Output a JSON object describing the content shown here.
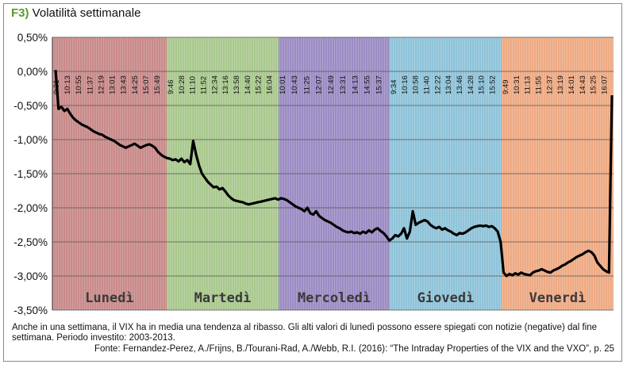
{
  "title_tag": "F3)",
  "title": "Volatilità settimanale",
  "note": "Anche in una settimana, il VIX ha in media una tendenza al ribasso. Gli alti valori di lunedì possono essere spiegati con notizie (negative) dal fine settimana. Periodo investito: 2003-2013.",
  "source": "Fonte: Fernandez-Perez, A./Frijns, B./Tourani-Rad, A./Webb, R.I. (2016): “The Intraday Properties of the VIX and the VXO”, p. 25",
  "chart_data": {
    "type": "line",
    "ylim": [
      -3.5,
      0.5
    ],
    "yticks": [
      "0,50%",
      "0,00%",
      "-0,50%",
      "-1,00%",
      "-1,50%",
      "-2,00%",
      "-2,50%",
      "-3,00%",
      "-3,50%"
    ],
    "grid": true,
    "days": [
      {
        "name": "Lunedì",
        "color": "#c98a8a",
        "ticks": [
          "9:31",
          "10:13",
          "10:55",
          "11:37",
          "12:19",
          "13:01",
          "13:43",
          "14:25",
          "15:07",
          "15:49"
        ]
      },
      {
        "name": "Martedì",
        "color": "#a9c98e",
        "ticks": [
          "9:46",
          "10:28",
          "11:10",
          "11:52",
          "12:34",
          "13:16",
          "13:58",
          "14:40",
          "15:22",
          "16:04"
        ]
      },
      {
        "name": "Mercoledì",
        "color": "#9b8cc4",
        "ticks": [
          "10:01",
          "10:43",
          "11:25",
          "12:07",
          "12:49",
          "13:31",
          "14:13",
          "14:55",
          "15:37"
        ]
      },
      {
        "name": "Giovedì",
        "color": "#8fc3d9",
        "ticks": [
          "9:34",
          "10:16",
          "10:58",
          "11:40",
          "12:22",
          "13:04",
          "13:46",
          "14:28",
          "15:10",
          "15:52"
        ]
      },
      {
        "name": "Venerdì",
        "color": "#eeaa84",
        "ticks": [
          "9:49",
          "10:31",
          "11:13",
          "11:55",
          "12:37",
          "13:19",
          "14:01",
          "14:43",
          "15:25",
          "16:07"
        ]
      }
    ],
    "series": [
      {
        "values": [
          [
            0,
            0.02
          ],
          [
            1,
            -0.55
          ],
          [
            2,
            -0.52
          ],
          [
            3,
            -0.58
          ],
          [
            4,
            -0.55
          ],
          [
            5,
            -0.62
          ],
          [
            6,
            -0.68
          ],
          [
            7,
            -0.72
          ],
          [
            8,
            -0.75
          ],
          [
            9,
            -0.78
          ],
          [
            10,
            -0.8
          ],
          [
            11,
            -0.82
          ],
          [
            12,
            -0.85
          ],
          [
            13,
            -0.88
          ],
          [
            14,
            -0.9
          ],
          [
            15,
            -0.92
          ],
          [
            16,
            -0.93
          ],
          [
            17,
            -0.96
          ],
          [
            18,
            -0.98
          ],
          [
            19,
            -1.0
          ],
          [
            20,
            -1.02
          ],
          [
            21,
            -1.05
          ],
          [
            22,
            -1.08
          ],
          [
            23,
            -1.1
          ],
          [
            24,
            -1.12
          ],
          [
            25,
            -1.1
          ],
          [
            26,
            -1.08
          ],
          [
            27,
            -1.06
          ],
          [
            28,
            -1.09
          ],
          [
            29,
            -1.12
          ],
          [
            30,
            -1.1
          ],
          [
            31,
            -1.08
          ],
          [
            32,
            -1.07
          ],
          [
            33,
            -1.09
          ],
          [
            34,
            -1.12
          ],
          [
            35,
            -1.18
          ],
          [
            36,
            -1.22
          ],
          [
            37,
            -1.25
          ],
          [
            38,
            -1.27
          ],
          [
            39,
            -1.28
          ],
          [
            40,
            -1.3
          ],
          [
            41,
            -1.29
          ],
          [
            42,
            -1.32
          ],
          [
            43,
            -1.28
          ],
          [
            44,
            -1.33
          ],
          [
            45,
            -1.3
          ],
          [
            46,
            -1.36
          ],
          [
            47,
            -1.02
          ],
          [
            48,
            -1.22
          ],
          [
            49,
            -1.38
          ],
          [
            50,
            -1.5
          ],
          [
            51,
            -1.56
          ],
          [
            52,
            -1.62
          ],
          [
            53,
            -1.66
          ],
          [
            54,
            -1.7
          ],
          [
            55,
            -1.69
          ],
          [
            56,
            -1.73
          ],
          [
            57,
            -1.71
          ],
          [
            58,
            -1.76
          ],
          [
            59,
            -1.82
          ],
          [
            60,
            -1.86
          ],
          [
            61,
            -1.89
          ],
          [
            62,
            -1.9
          ],
          [
            63,
            -1.91
          ],
          [
            64,
            -1.92
          ],
          [
            65,
            -1.94
          ],
          [
            66,
            -1.95
          ],
          [
            67,
            -1.94
          ],
          [
            68,
            -1.93
          ],
          [
            69,
            -1.92
          ],
          [
            70,
            -1.91
          ],
          [
            71,
            -1.9
          ],
          [
            72,
            -1.89
          ],
          [
            73,
            -1.88
          ],
          [
            74,
            -1.87
          ],
          [
            75,
            -1.86
          ],
          [
            76,
            -1.88
          ],
          [
            77,
            -1.86
          ],
          [
            78,
            -1.87
          ],
          [
            79,
            -1.89
          ],
          [
            80,
            -1.92
          ],
          [
            81,
            -1.95
          ],
          [
            82,
            -1.98
          ],
          [
            83,
            -2.0
          ],
          [
            84,
            -2.02
          ],
          [
            85,
            -2.05
          ],
          [
            86,
            -2.0
          ],
          [
            87,
            -2.08
          ],
          [
            88,
            -2.1
          ],
          [
            89,
            -2.05
          ],
          [
            90,
            -2.12
          ],
          [
            91,
            -2.15
          ],
          [
            92,
            -2.18
          ],
          [
            93,
            -2.2
          ],
          [
            94,
            -2.22
          ],
          [
            95,
            -2.25
          ],
          [
            96,
            -2.28
          ],
          [
            97,
            -2.3
          ],
          [
            98,
            -2.33
          ],
          [
            99,
            -2.35
          ],
          [
            100,
            -2.36
          ],
          [
            101,
            -2.35
          ],
          [
            102,
            -2.37
          ],
          [
            103,
            -2.36
          ],
          [
            104,
            -2.38
          ],
          [
            105,
            -2.35
          ],
          [
            106,
            -2.37
          ],
          [
            107,
            -2.33
          ],
          [
            108,
            -2.36
          ],
          [
            109,
            -2.32
          ],
          [
            110,
            -2.3
          ],
          [
            111,
            -2.34
          ],
          [
            112,
            -2.37
          ],
          [
            113,
            -2.42
          ],
          [
            114,
            -2.48
          ],
          [
            115,
            -2.45
          ],
          [
            116,
            -2.4
          ],
          [
            117,
            -2.42
          ],
          [
            118,
            -2.38
          ],
          [
            119,
            -2.3
          ],
          [
            120,
            -2.45
          ],
          [
            121,
            -2.35
          ],
          [
            122,
            -2.05
          ],
          [
            123,
            -2.25
          ],
          [
            124,
            -2.22
          ],
          [
            125,
            -2.2
          ],
          [
            126,
            -2.18
          ],
          [
            127,
            -2.2
          ],
          [
            128,
            -2.25
          ],
          [
            129,
            -2.28
          ],
          [
            130,
            -2.3
          ],
          [
            131,
            -2.28
          ],
          [
            132,
            -2.32
          ],
          [
            133,
            -2.3
          ],
          [
            134,
            -2.33
          ],
          [
            135,
            -2.35
          ],
          [
            136,
            -2.38
          ],
          [
            137,
            -2.4
          ],
          [
            138,
            -2.37
          ],
          [
            139,
            -2.38
          ],
          [
            140,
            -2.36
          ],
          [
            141,
            -2.33
          ],
          [
            142,
            -2.3
          ],
          [
            143,
            -2.28
          ],
          [
            144,
            -2.27
          ],
          [
            145,
            -2.26
          ],
          [
            146,
            -2.27
          ],
          [
            147,
            -2.26
          ],
          [
            148,
            -2.28
          ],
          [
            149,
            -2.27
          ],
          [
            150,
            -2.3
          ],
          [
            151,
            -2.35
          ],
          [
            152,
            -2.5
          ],
          [
            153,
            -2.95
          ],
          [
            154,
            -3.0
          ],
          [
            155,
            -2.97
          ],
          [
            156,
            -2.99
          ],
          [
            157,
            -2.96
          ],
          [
            158,
            -2.98
          ],
          [
            159,
            -2.95
          ],
          [
            160,
            -2.97
          ],
          [
            161,
            -2.98
          ],
          [
            162,
            -2.99
          ],
          [
            163,
            -2.95
          ],
          [
            164,
            -2.93
          ],
          [
            165,
            -2.92
          ],
          [
            166,
            -2.9
          ],
          [
            167,
            -2.92
          ],
          [
            168,
            -2.94
          ],
          [
            169,
            -2.95
          ],
          [
            170,
            -2.92
          ],
          [
            171,
            -2.9
          ],
          [
            172,
            -2.88
          ],
          [
            173,
            -2.85
          ],
          [
            174,
            -2.83
          ],
          [
            175,
            -2.8
          ],
          [
            176,
            -2.78
          ],
          [
            177,
            -2.75
          ],
          [
            178,
            -2.72
          ],
          [
            179,
            -2.7
          ],
          [
            180,
            -2.68
          ],
          [
            181,
            -2.65
          ],
          [
            182,
            -2.63
          ],
          [
            183,
            -2.65
          ],
          [
            184,
            -2.7
          ],
          [
            185,
            -2.8
          ],
          [
            186,
            -2.85
          ],
          [
            187,
            -2.9
          ],
          [
            188,
            -2.93
          ],
          [
            189,
            -2.95
          ],
          [
            190,
            -0.35
          ]
        ],
        "color": "#000000"
      }
    ]
  }
}
